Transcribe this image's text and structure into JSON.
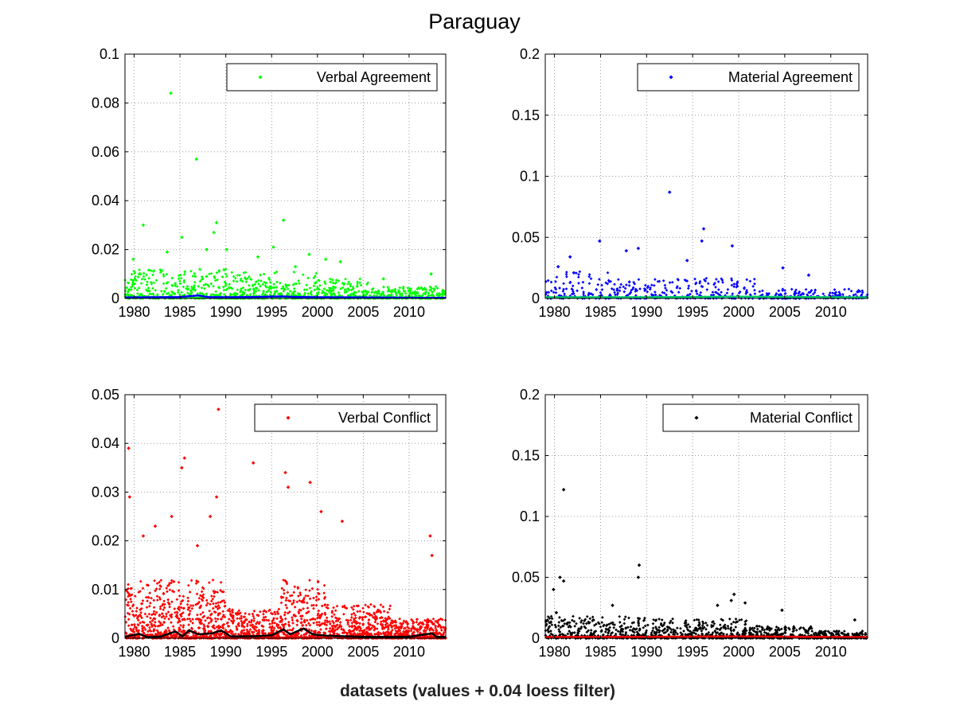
{
  "figure": {
    "title": "Paraguay",
    "xlabel": "datasets (values + 0.04 loess filter)"
  },
  "chart_data": [
    {
      "type": "scatter",
      "name": "verbal-agreement",
      "legend": "Verbal Agreement",
      "legend_position": "top-right",
      "grid": true,
      "xlim": [
        1979,
        2014
      ],
      "ylim": [
        0,
        0.1
      ],
      "xticks": [
        1980,
        1985,
        1990,
        1995,
        2000,
        2005,
        2010
      ],
      "yticks": [
        0,
        0.02,
        0.04,
        0.06,
        0.08,
        0.1
      ],
      "ytick_labels": [
        "0",
        "0.02",
        "0.04",
        "0.06",
        "0.08",
        "0.1"
      ],
      "point_color": "#00ff00",
      "line_color": "#0000ff",
      "outliers": [
        [
          1984.0,
          0.084
        ],
        [
          1986.8,
          0.057
        ],
        [
          1981.0,
          0.03
        ],
        [
          1985.2,
          0.025
        ],
        [
          1989.0,
          0.031
        ],
        [
          1996.3,
          0.032
        ],
        [
          1995.2,
          0.021
        ],
        [
          1988.7,
          0.027
        ],
        [
          1979.9,
          0.016
        ],
        [
          1983.6,
          0.019
        ],
        [
          1987.9,
          0.02
        ],
        [
          1993.5,
          0.017
        ],
        [
          1999.1,
          0.018
        ],
        [
          2000.9,
          0.016
        ],
        [
          2002.5,
          0.015
        ],
        [
          1990.1,
          0.02
        ],
        [
          2012.4,
          0.01
        ],
        [
          2007.2,
          0.008
        ],
        [
          1997.6,
          0.013
        ]
      ],
      "bulk": {
        "segments": [
          [
            1979,
            1990,
            0.012
          ],
          [
            1990,
            2000,
            0.011
          ],
          [
            2000,
            2006,
            0.008
          ],
          [
            2006,
            2014,
            0.005
          ]
        ],
        "count": 1100
      },
      "loess": [
        [
          1979,
          0.0004
        ],
        [
          1982,
          0.0005
        ],
        [
          1985,
          0.0006
        ],
        [
          1987,
          0.0012
        ],
        [
          1988,
          0.0006
        ],
        [
          1990,
          0.0005
        ],
        [
          1993,
          0.0006
        ],
        [
          1996,
          0.0008
        ],
        [
          1998,
          0.0006
        ],
        [
          2000,
          0.0005
        ],
        [
          2005,
          0.0004
        ],
        [
          2010,
          0.0003
        ],
        [
          2014,
          0.0002
        ]
      ]
    },
    {
      "type": "scatter",
      "name": "material-agreement",
      "legend": "Material Agreement",
      "legend_position": "top-right",
      "grid": true,
      "xlim": [
        1979,
        2014
      ],
      "ylim": [
        0,
        0.2
      ],
      "xticks": [
        1980,
        1985,
        1990,
        1995,
        2000,
        2005,
        2010
      ],
      "yticks": [
        0,
        0.05,
        0.1,
        0.15,
        0.2
      ],
      "ytick_labels": [
        "0",
        "0.05",
        "0.1",
        "0.15",
        "0.2"
      ],
      "point_color": "#0000ff",
      "line_color": "#00cc66",
      "outliers": [
        [
          1992.5,
          0.087
        ],
        [
          1996.2,
          0.057
        ],
        [
          1996.0,
          0.047
        ],
        [
          1984.9,
          0.047
        ],
        [
          1999.3,
          0.043
        ],
        [
          1989.1,
          0.041
        ],
        [
          1987.8,
          0.039
        ],
        [
          1981.7,
          0.034
        ],
        [
          1994.4,
          0.031
        ],
        [
          2004.8,
          0.025
        ],
        [
          1980.4,
          0.026
        ],
        [
          1982.1,
          0.021
        ],
        [
          2007.6,
          0.019
        ]
      ],
      "bulk": {
        "segments": [
          [
            1979,
            1986,
            0.022
          ],
          [
            1986,
            1995,
            0.016
          ],
          [
            1995,
            2002,
            0.018
          ],
          [
            2002,
            2014,
            0.008
          ]
        ],
        "count": 550
      },
      "loess": [
        [
          1979,
          0.001
        ],
        [
          1990,
          0.001
        ],
        [
          2000,
          0.0015
        ],
        [
          2014,
          0.0008
        ]
      ]
    },
    {
      "type": "scatter",
      "name": "verbal-conflict",
      "legend": "Verbal Conflict",
      "legend_position": "top-right",
      "grid": true,
      "xlim": [
        1979,
        2014
      ],
      "ylim": [
        0,
        0.05
      ],
      "xticks": [
        1980,
        1985,
        1990,
        1995,
        2000,
        2005,
        2010
      ],
      "yticks": [
        0,
        0.01,
        0.02,
        0.03,
        0.04,
        0.05
      ],
      "ytick_labels": [
        "0",
        "0.01",
        "0.02",
        "0.03",
        "0.04",
        "0.05"
      ],
      "point_color": "#ff0000",
      "line_color": "#000000",
      "outliers": [
        [
          1989.2,
          0.047
        ],
        [
          1979.4,
          0.039
        ],
        [
          1985.5,
          0.037
        ],
        [
          1993.0,
          0.036
        ],
        [
          1985.2,
          0.035
        ],
        [
          1996.5,
          0.034
        ],
        [
          1979.5,
          0.029
        ],
        [
          1989.0,
          0.029
        ],
        [
          1999.2,
          0.032
        ],
        [
          1996.8,
          0.031
        ],
        [
          2000.4,
          0.026
        ],
        [
          2002.7,
          0.024
        ],
        [
          1988.3,
          0.025
        ],
        [
          1984.1,
          0.025
        ],
        [
          1982.3,
          0.023
        ],
        [
          2012.3,
          0.021
        ],
        [
          2012.5,
          0.017
        ],
        [
          1986.9,
          0.019
        ],
        [
          1981.0,
          0.021
        ]
      ],
      "bulk": {
        "segments": [
          [
            1979,
            1985,
            0.012
          ],
          [
            1985,
            1990,
            0.012
          ],
          [
            1990,
            1996,
            0.006
          ],
          [
            1996,
            2001,
            0.012
          ],
          [
            2001,
            2008,
            0.007
          ],
          [
            2008,
            2014,
            0.004
          ]
        ],
        "count": 2200
      },
      "loess": [
        [
          1979,
          0.0003
        ],
        [
          1980.5,
          0.0009
        ],
        [
          1981.5,
          0.0002
        ],
        [
          1983,
          0.0004
        ],
        [
          1984.5,
          0.0014
        ],
        [
          1985.3,
          0.0004
        ],
        [
          1986,
          0.0016
        ],
        [
          1987,
          0.0008
        ],
        [
          1988.5,
          0.001
        ],
        [
          1989.5,
          0.0016
        ],
        [
          1990.5,
          0.0004
        ],
        [
          1993,
          0.0004
        ],
        [
          1995,
          0.0006
        ],
        [
          1996.3,
          0.0018
        ],
        [
          1997,
          0.0008
        ],
        [
          1998.5,
          0.002
        ],
        [
          1999.5,
          0.0008
        ],
        [
          2001,
          0.0005
        ],
        [
          2005,
          0.0003
        ],
        [
          2010,
          0.0003
        ],
        [
          2012.5,
          0.001
        ],
        [
          2013,
          0.0003
        ],
        [
          2014,
          0.0003
        ]
      ]
    },
    {
      "type": "scatter",
      "name": "material-conflict",
      "legend": "Material Conflict",
      "legend_position": "top-right",
      "grid": true,
      "xlim": [
        1979,
        2014
      ],
      "ylim": [
        0,
        0.2
      ],
      "xticks": [
        1980,
        1985,
        1990,
        1995,
        2000,
        2005,
        2010
      ],
      "yticks": [
        0,
        0.05,
        0.1,
        0.15,
        0.2
      ],
      "ytick_labels": [
        "0",
        "0.05",
        "0.1",
        "0.15",
        "0.2"
      ],
      "point_color": "#000000",
      "line_color": "#ff0000",
      "outliers": [
        [
          1981.0,
          0.122
        ],
        [
          1989.2,
          0.06
        ],
        [
          1989.1,
          0.05
        ],
        [
          1980.6,
          0.05
        ],
        [
          1981.0,
          0.047
        ],
        [
          1979.9,
          0.04
        ],
        [
          1999.5,
          0.036
        ],
        [
          1999.2,
          0.031
        ],
        [
          1980.2,
          0.021
        ],
        [
          2000.7,
          0.029
        ],
        [
          1997.7,
          0.027
        ],
        [
          1986.3,
          0.027
        ],
        [
          2004.7,
          0.023
        ],
        [
          2012.6,
          0.015
        ]
      ],
      "bulk": {
        "segments": [
          [
            1979,
            1990,
            0.018
          ],
          [
            1990,
            2001,
            0.016
          ],
          [
            2001,
            2008,
            0.01
          ],
          [
            2008,
            2014,
            0.006
          ]
        ],
        "count": 1200
      },
      "loess": [
        [
          1979,
          0.001
        ],
        [
          1990,
          0.0012
        ],
        [
          2000,
          0.0015
        ],
        [
          2014,
          0.0008
        ]
      ]
    }
  ]
}
